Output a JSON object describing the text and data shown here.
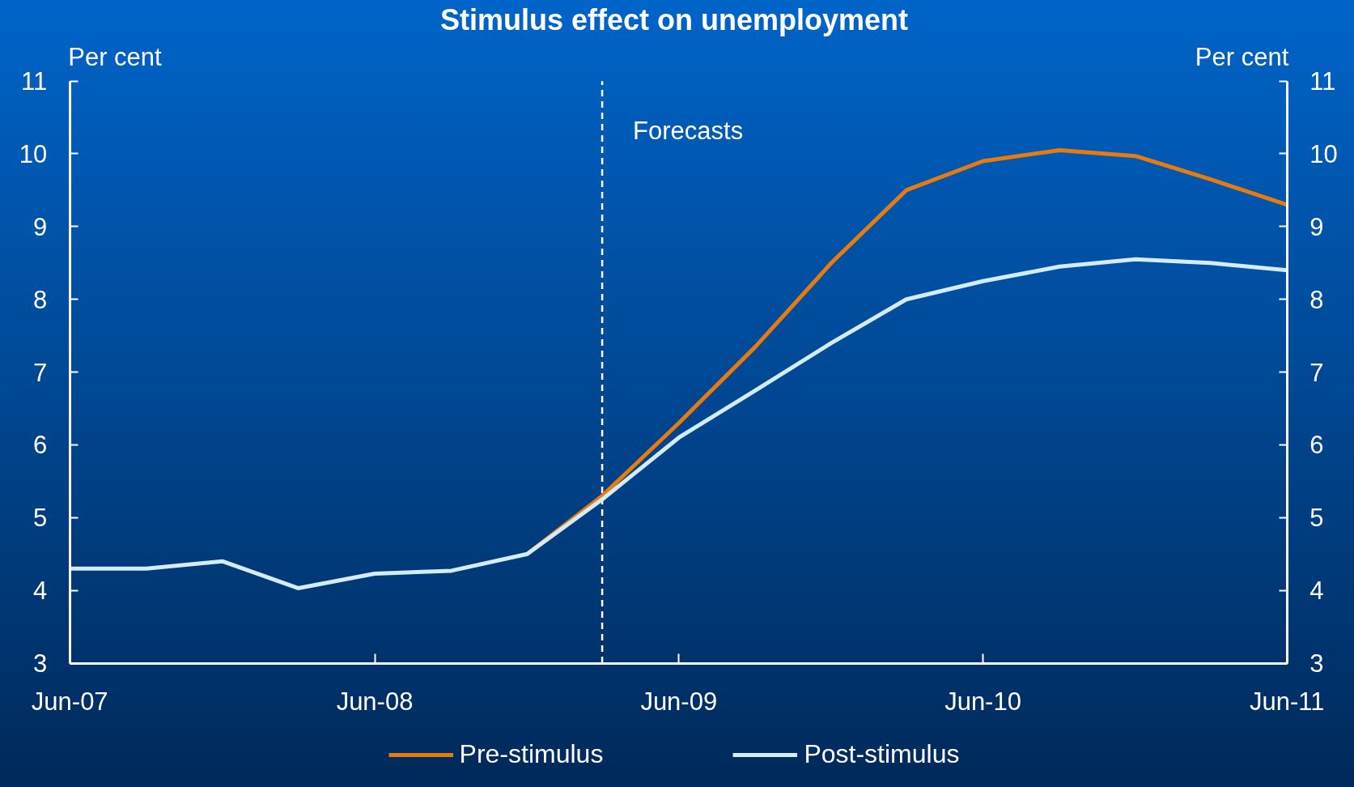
{
  "chart_data": {
    "type": "line",
    "title": "Stimulus effect on unemployment",
    "ylabel": "Per cent",
    "y2label": "Per cent",
    "x": [
      "2007-06",
      "2007-09",
      "2007-12",
      "2008-03",
      "2008-06",
      "2008-09",
      "2008-12",
      "2009-03",
      "2009-06",
      "2009-09",
      "2009-12",
      "2010-03",
      "2010-06",
      "2010-09",
      "2010-12",
      "2011-03",
      "2011-06"
    ],
    "series": [
      {
        "name": "Pre-stimulus",
        "color": "#e87b10",
        "values": [
          null,
          null,
          null,
          null,
          null,
          null,
          4.5,
          5.3,
          6.3,
          7.35,
          8.5,
          9.5,
          9.9,
          10.05,
          9.97,
          9.65,
          9.3
        ]
      },
      {
        "name": "Post-stimulus",
        "color": "#d4ecf9",
        "values": [
          4.3,
          4.3,
          4.4,
          4.03,
          4.23,
          4.27,
          4.5,
          5.25,
          6.1,
          6.75,
          7.4,
          8.0,
          8.25,
          8.45,
          8.55,
          8.5,
          8.4
        ]
      }
    ],
    "xlim": [
      "2007-06",
      "2011-06"
    ],
    "xticks": [
      {
        "value": "2007-06",
        "label": "Jun-07"
      },
      {
        "value": "2008-06",
        "label": "Jun-08"
      },
      {
        "value": "2009-06",
        "label": "Jun-09"
      },
      {
        "value": "2010-06",
        "label": "Jun-10"
      },
      {
        "value": "2011-06",
        "label": "Jun-11"
      }
    ],
    "ylim": [
      3,
      11
    ],
    "yticks": [
      3,
      4,
      5,
      6,
      7,
      8,
      9,
      10,
      11
    ],
    "y2lim": [
      3,
      11
    ],
    "y2ticks": [
      3,
      4,
      5,
      6,
      7,
      8,
      9,
      10,
      11
    ],
    "ref_lines": [
      {
        "axis": "x",
        "value": "2009-03",
        "label": "Forecasts",
        "color": "#ffffff",
        "line_style": "dashed"
      }
    ],
    "legend": "bottom",
    "grid": false
  }
}
